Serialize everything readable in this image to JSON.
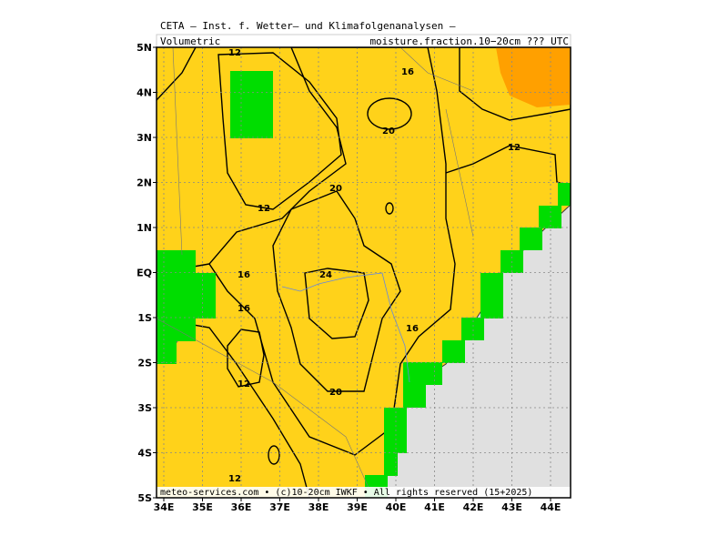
{
  "header": {
    "title": "CETA — Inst. f. Wetter— und Klimafolgenanalysen —",
    "left": "Volumetric",
    "right_prefix": "moisture.",
    "right_box": "fraction",
    "right_suffix": ".10−20cm ??? UTC"
  },
  "axes": {
    "lat_labels": [
      "5N",
      "4N",
      "3N",
      "2N",
      "1N",
      "EQ",
      "1S",
      "2S",
      "3S",
      "4S",
      "5S"
    ],
    "lon_labels": [
      "34E",
      "35E",
      "36E",
      "37E",
      "38E",
      "39E",
      "40E",
      "41E",
      "42E",
      "43E",
      "44E"
    ]
  },
  "contour_labels": [
    "12",
    "16",
    "20",
    "12",
    "20",
    "12",
    "16",
    "24",
    "16",
    "16",
    "12",
    "20",
    "12"
  ],
  "footer": "meteo-services.com • (c)10-20cm IWKF • All rights reserved (15+2025)"
}
